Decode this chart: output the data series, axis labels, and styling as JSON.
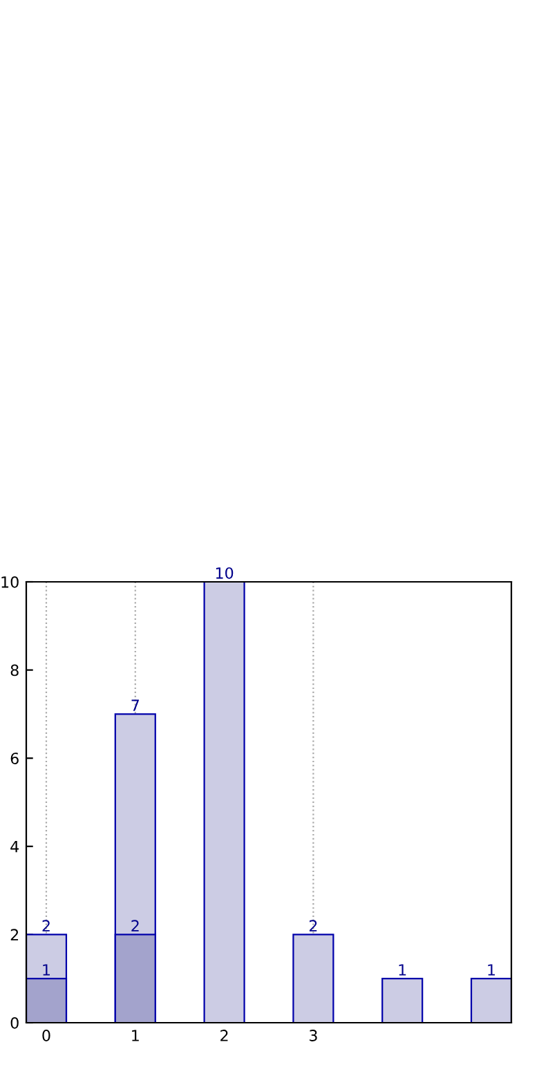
{
  "chart_data": {
    "type": "bar",
    "categories": [
      "0",
      "1",
      "2",
      "3",
      null,
      null
    ],
    "series": [
      {
        "color": "#cccce4",
        "values": [
          2,
          7,
          10,
          2,
          1,
          1
        ]
      },
      {
        "color": "#a3a3cc",
        "values": [
          1,
          2,
          null,
          null,
          null,
          null
        ]
      }
    ],
    "ylim": [
      0,
      10
    ],
    "yticks": [
      0,
      2,
      4,
      6,
      8,
      10
    ],
    "grid": "x",
    "data_labels": true
  }
}
